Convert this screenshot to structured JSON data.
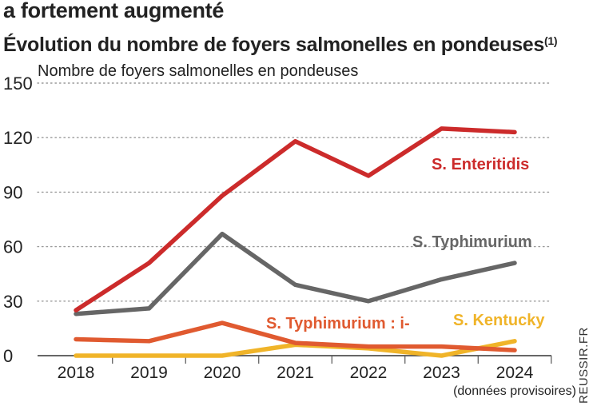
{
  "header": {
    "headline": "a fortement augmenté",
    "subtitle": "Évolution du nombre de foyers salmonelles en pondeuses",
    "footnote_mark": "(1)"
  },
  "source": "REUSSIR.FR",
  "chart_data": {
    "type": "line",
    "ylabel": "Nombre de foyers salmonelles en pondeuses",
    "xlabel": "",
    "ylim": [
      0,
      150
    ],
    "yticks": [
      "0",
      "30",
      "60",
      "90",
      "120",
      "150"
    ],
    "categories": [
      "2018",
      "2019",
      "2020",
      "2021",
      "2022",
      "2023",
      "2024"
    ],
    "category_note": "(données provisoires)",
    "grid": "dotted-horizontal",
    "series": [
      {
        "name": "S. Enteritidis",
        "color": "#cc2b2b",
        "values": [
          25,
          51,
          88,
          118,
          99,
          125,
          123
        ]
      },
      {
        "name": "S. Typhimurium",
        "color": "#666666",
        "values": [
          23,
          26,
          67,
          39,
          30,
          42,
          51
        ]
      },
      {
        "name": "S. Typhimurium : i-",
        "color": "#e05a30",
        "values": [
          9,
          8,
          18,
          7,
          5,
          5,
          3
        ]
      },
      {
        "name": "S. Kentucky",
        "color": "#f0b429",
        "values": [
          0,
          0,
          0,
          6,
          4,
          0,
          8
        ]
      }
    ]
  }
}
